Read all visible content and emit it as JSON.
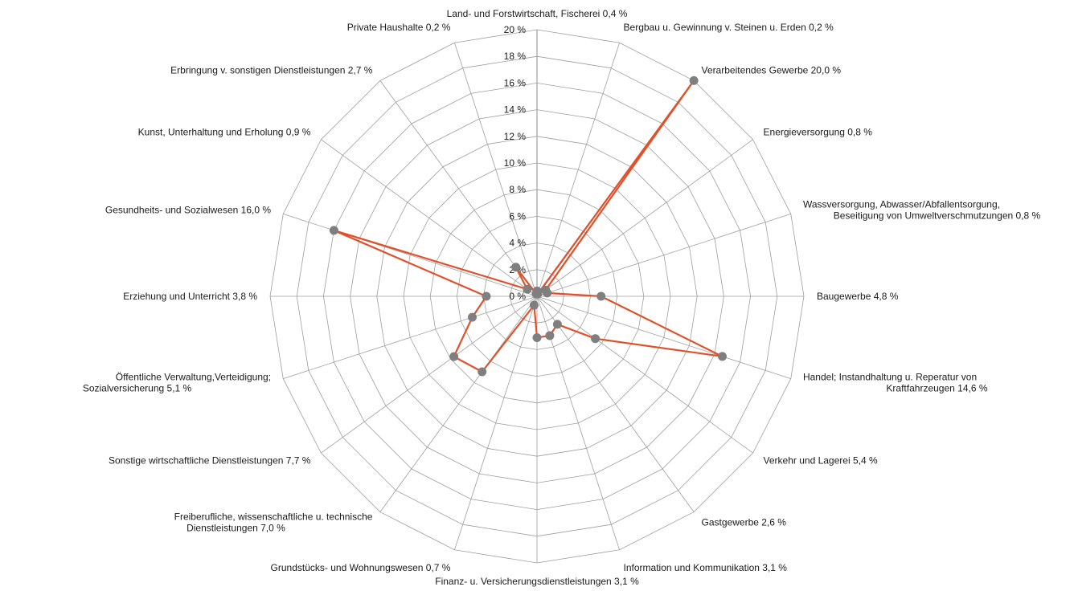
{
  "chart_data": {
    "type": "radar",
    "title": "",
    "rlim": [
      0,
      20
    ],
    "ticks": [
      "0 %",
      "2 %",
      "4 %",
      "6 %",
      "8 %",
      "10 %",
      "12 %",
      "14 %",
      "16 %",
      "18 %",
      "20 %"
    ],
    "grid": true,
    "legend": "none",
    "colors": {
      "line": "#e0512b",
      "marker": "#7f7f7f",
      "grid": "#9e9e9e"
    },
    "categories": [
      {
        "label": "Land- und Forstwirtschaft, Fischerei 0,4 %",
        "value": 0.4
      },
      {
        "label": "Bergbau u. Gewinnung v. Steinen u. Erden 0,2 %",
        "value": 0.2
      },
      {
        "label": "Verarbeitendes Gewerbe 20,0 %",
        "value": 20.0
      },
      {
        "label": "Energieversorgung 0,8 %",
        "value": 0.8
      },
      {
        "label": "Wassversorgung, Abwasser/Abfallentsorgung, Beseitigung von Umweltverschmutzungen 0,8 %",
        "value": 0.8
      },
      {
        "label": "Baugewerbe 4,8 %",
        "value": 4.8
      },
      {
        "label": "Handel; Instandhaltung u. Reperatur von Kraftfahrzeugen 14,6 %",
        "value": 14.6
      },
      {
        "label": "Verkehr und Lagerei 5,4 %",
        "value": 5.4
      },
      {
        "label": "Gastgewerbe 2,6 %",
        "value": 2.6
      },
      {
        "label": "Information und Kommunikation 3,1 %",
        "value": 3.1
      },
      {
        "label": "Finanz- u. Versicherungsdienstleistungen 3,1 %",
        "value": 3.1
      },
      {
        "label": "Grundstücks- und Wohnungswesen 0,7 %",
        "value": 0.7
      },
      {
        "label": "Freiberufliche, wissenschaftliche u. technische Dienstleistungen 7,0 %",
        "value": 7.0
      },
      {
        "label": "Sonstige wirtschaftliche Dienstleistungen 7,7 %",
        "value": 7.7
      },
      {
        "label": "Öffentliche Verwaltung,Verteidigung; Sozialversicherung 5,1 %",
        "value": 5.1
      },
      {
        "label": "Erziehung und Unterricht 3,8 %",
        "value": 3.8
      },
      {
        "label": "Gesundheits- und Sozialwesen 16,0 %",
        "value": 16.0
      },
      {
        "label": "Kunst, Unterhaltung und Erholung 0,9 %",
        "value": 0.9
      },
      {
        "label": "Erbringung v. sonstigen Dienstleistungen 2,7 %",
        "value": 2.7
      },
      {
        "label": "Private Haushalte 0,2 %",
        "value": 0.2
      }
    ]
  }
}
